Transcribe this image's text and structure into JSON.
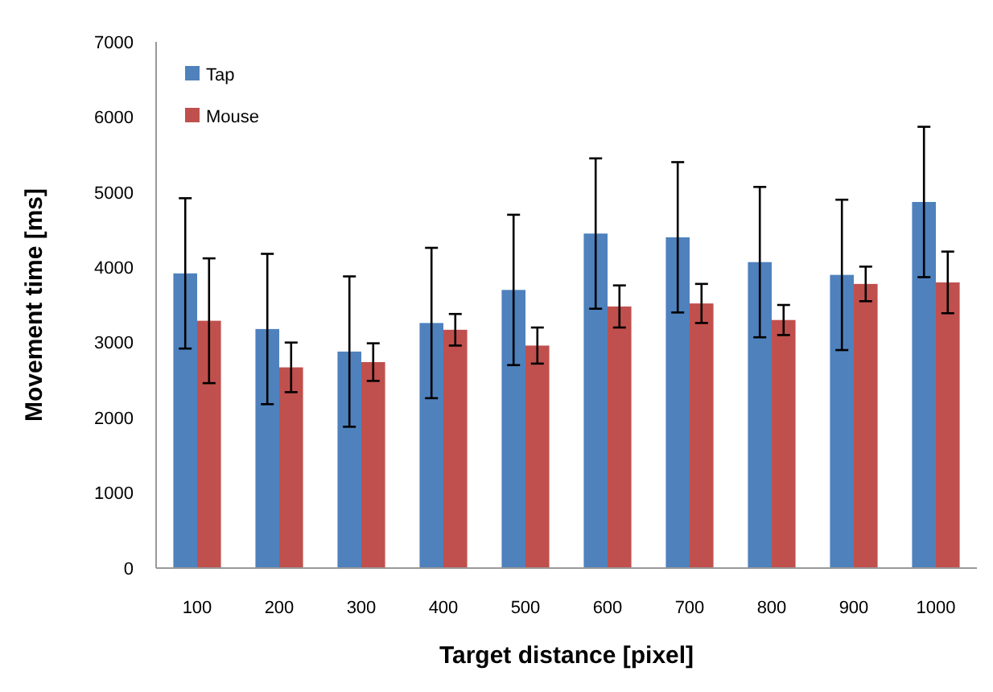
{
  "chart_data": {
    "type": "bar",
    "xlabel": "Target distance [pixel]",
    "ylabel": "Movement time [ms]",
    "categories": [
      "100",
      "200",
      "300",
      "400",
      "500",
      "600",
      "700",
      "800",
      "900",
      "1000"
    ],
    "series": [
      {
        "name": "Tap",
        "color": "#4f81bd",
        "values": [
          3920,
          3180,
          2880,
          3260,
          3700,
          4450,
          4400,
          4070,
          3900,
          4870
        ],
        "errors": [
          1000,
          1000,
          1000,
          1000,
          1000,
          1000,
          1000,
          1000,
          1000,
          1000
        ]
      },
      {
        "name": "Mouse",
        "color": "#c0504d",
        "values": [
          3290,
          2670,
          2740,
          3170,
          2960,
          3480,
          3520,
          3300,
          3780,
          3800
        ],
        "errors": [
          830,
          330,
          250,
          210,
          240,
          280,
          260,
          200,
          230,
          410
        ]
      }
    ],
    "ylim": [
      0,
      7000
    ],
    "yticks": [
      0,
      1000,
      2000,
      3000,
      4000,
      5000,
      6000,
      7000
    ],
    "grid": false,
    "legend": "top left"
  }
}
